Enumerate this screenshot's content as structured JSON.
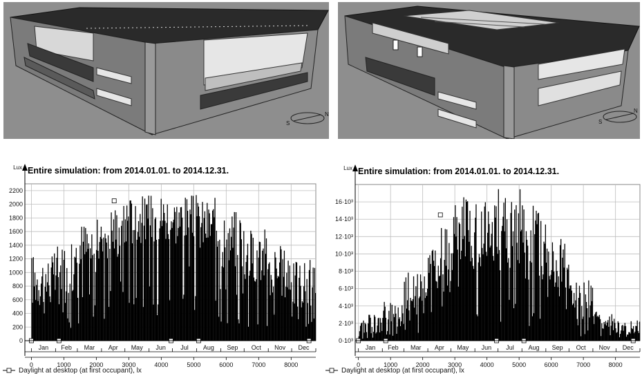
{
  "renders": {
    "left": {
      "compass_label_n": "N",
      "compass_label_s": "S"
    },
    "right": {
      "compass_label_n": "N",
      "compass_label_s": "S"
    }
  },
  "colors": {
    "bar": "#000000",
    "grid": "#bdbdbd",
    "render_bg": "#8c8c8c"
  },
  "chart_data": [
    {
      "type": "bar",
      "title": "Entire simulation: from 2014.01.01. to 2014.12.31.",
      "ylabel": "Lux",
      "xlim": [
        -200,
        8760
      ],
      "ylim": [
        0,
        2300
      ],
      "yticks": [
        0,
        200,
        400,
        600,
        800,
        1000,
        1200,
        1400,
        1600,
        1800,
        2000,
        2200
      ],
      "ytick_labels": [
        "0",
        "200",
        "400",
        "600",
        "800",
        "1000",
        "1200",
        "1400",
        "1600",
        "1800",
        "2000",
        "2200"
      ],
      "xticks": [
        0,
        1000,
        2000,
        3000,
        4000,
        5000,
        6000,
        7000,
        8000
      ],
      "xtick_labels": [
        "0",
        "1000",
        "2000",
        "3000",
        "4000",
        "5000",
        "6000",
        "7000",
        "8000"
      ],
      "months": [
        "Jan",
        "Feb",
        "Mar",
        "Apr",
        "May",
        "Jun",
        "Jul",
        "Aug",
        "Sep",
        "Oct",
        "Nov",
        "Dec"
      ],
      "month_peak_values": [
        1300,
        1450,
        1800,
        2050,
        2150,
        2200,
        2150,
        2100,
        1950,
        1650,
        1400,
        1200
      ],
      "month_body_values": [
        500,
        700,
        900,
        1200,
        1400,
        1450,
        1400,
        1300,
        1050,
        850,
        600,
        450
      ],
      "marker_points": [
        [
          0,
          0
        ],
        [
          850,
          0
        ],
        [
          2550,
          2050
        ],
        [
          4300,
          0
        ],
        [
          5150,
          0
        ],
        [
          8550,
          0
        ]
      ],
      "grid": true,
      "legend": "Daylight at desktop (at first occupant), lx"
    },
    {
      "type": "bar",
      "title": "Entire simulation: from 2014.01.01. to 2014.12.31.",
      "ylabel": "Lux",
      "xlim": [
        -100,
        8760
      ],
      "ylim": [
        0,
        18000
      ],
      "yticks": [
        0,
        2000,
        4000,
        6000,
        8000,
        10000,
        12000,
        14000,
        16000
      ],
      "ytick_labels": [
        "0·10³",
        "2·10³",
        "4·10³",
        "6·10³",
        "8·10³",
        "10·10³",
        "12·10³",
        "14·10³",
        "16·10³"
      ],
      "xticks": [
        0,
        1000,
        2000,
        3000,
        4000,
        5000,
        6000,
        7000,
        8000
      ],
      "xtick_labels": [
        "0",
        "1000",
        "2000",
        "3000",
        "4000",
        "5000",
        "6000",
        "7000",
        "8000"
      ],
      "months": [
        "Jan",
        "Feb",
        "Mar",
        "Apr",
        "May",
        "Jun",
        "Jul",
        "Aug",
        "Sep",
        "Oct",
        "Nov",
        "Dec"
      ],
      "month_peak_values": [
        3000,
        4500,
        8000,
        13000,
        17500,
        17000,
        17500,
        16000,
        12000,
        7000,
        3500,
        2500
      ],
      "month_body_values": [
        800,
        1500,
        3000,
        5500,
        8000,
        8500,
        8000,
        7000,
        5000,
        2500,
        1200,
        700
      ],
      "marker_points": [
        [
          0,
          0
        ],
        [
          850,
          0
        ],
        [
          2550,
          14500
        ],
        [
          4300,
          0
        ],
        [
          5150,
          0
        ],
        [
          8550,
          0
        ]
      ],
      "grid": true,
      "legend": "Daylight at desktop (at first occupant), lx"
    }
  ]
}
